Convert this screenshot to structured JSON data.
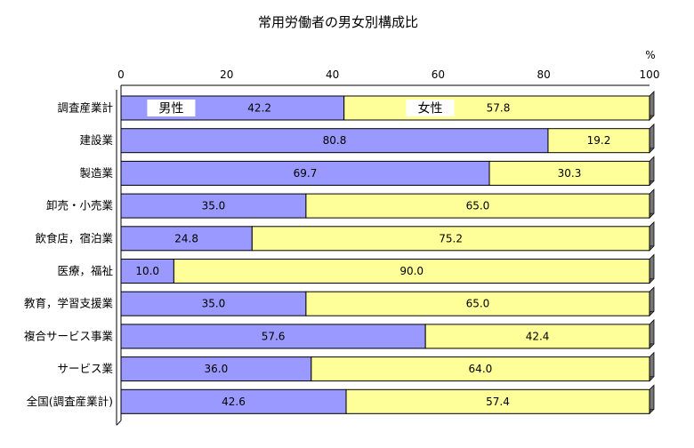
{
  "chart_data": {
    "type": "bar",
    "orientation": "horizontal",
    "stacked": true,
    "title": "常用労働者の男女別構成比",
    "unit": "%",
    "xlim": [
      0,
      100
    ],
    "xticks": [
      0,
      20,
      40,
      60,
      80,
      100
    ],
    "grid": false,
    "legend_placement": "inside-first-bar",
    "categories": [
      "調査産業計",
      "建設業",
      "製造業",
      "卸売・小売業",
      "飲食店，宿泊業",
      "医療，福祉",
      "教育，学習支援業",
      "複合サービス事業",
      "サービス業",
      "全国(調査産業計)"
    ],
    "series": [
      {
        "name": "男性",
        "color": "#9999ff",
        "values": [
          42.2,
          80.8,
          69.7,
          35.0,
          24.8,
          10.0,
          35.0,
          57.6,
          36.0,
          42.6
        ],
        "labels": [
          "42.2",
          "80.8",
          "69.7",
          "35.0",
          "24.8",
          "10.0",
          "35.0",
          "57.6",
          "36.0",
          "42.6"
        ]
      },
      {
        "name": "女性",
        "color": "#ffff99",
        "values": [
          57.8,
          19.2,
          30.3,
          65.0,
          75.2,
          90.0,
          65.0,
          42.4,
          64.0,
          57.4
        ],
        "labels": [
          "57.8",
          "19.2",
          "30.3",
          "65.0",
          "75.2",
          "90.0",
          "65.0",
          "42.4",
          "64.0",
          "57.4"
        ]
      }
    ]
  }
}
